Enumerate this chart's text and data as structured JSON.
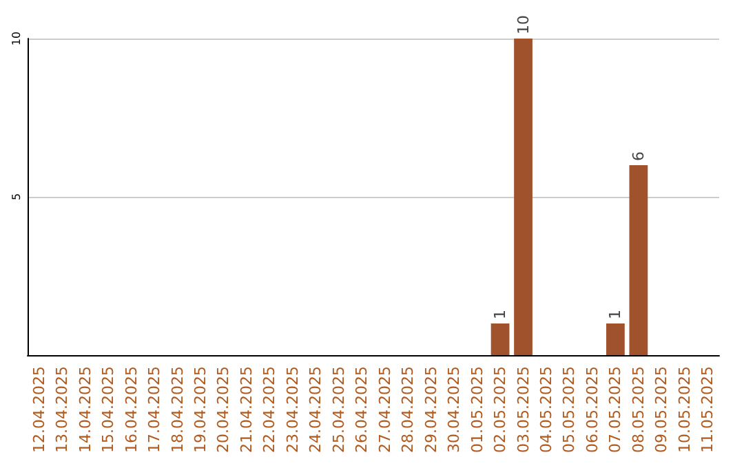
{
  "chart_data": {
    "type": "bar",
    "categories": [
      "12.04.2025",
      "13.04.2025",
      "14.04.2025",
      "15.04.2025",
      "16.04.2025",
      "17.04.2025",
      "18.04.2025",
      "19.04.2025",
      "20.04.2025",
      "21.04.2025",
      "22.04.2025",
      "23.04.2025",
      "24.04.2025",
      "25.04.2025",
      "26.04.2025",
      "27.04.2025",
      "28.04.2025",
      "29.04.2025",
      "30.04.2025",
      "01.05.2025",
      "02.05.2025",
      "03.05.2025",
      "04.05.2025",
      "05.05.2025",
      "06.05.2025",
      "07.05.2025",
      "08.05.2025",
      "09.05.2025",
      "10.05.2025",
      "11.05.2025"
    ],
    "values": [
      0,
      0,
      0,
      0,
      0,
      0,
      0,
      0,
      0,
      0,
      0,
      0,
      0,
      0,
      0,
      0,
      0,
      0,
      0,
      0,
      1,
      10,
      0,
      0,
      0,
      1,
      6,
      0,
      0,
      0
    ],
    "value_labels": [
      null,
      null,
      null,
      null,
      null,
      null,
      null,
      null,
      null,
      null,
      null,
      null,
      null,
      null,
      null,
      null,
      null,
      null,
      null,
      null,
      "1",
      "10",
      null,
      null,
      null,
      "1",
      "6",
      null,
      null,
      null
    ],
    "color": "#a0522d",
    "ylim": [
      0,
      10
    ],
    "yticks": [
      5,
      10
    ],
    "grid": "y"
  }
}
